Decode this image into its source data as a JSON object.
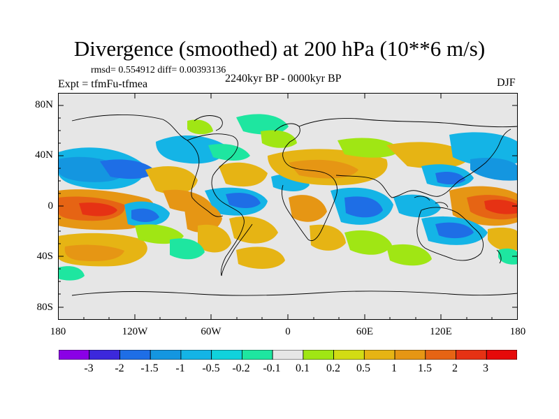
{
  "title": "Divergence (smoothed) at 200 hPa (10**6 m/s)",
  "stats": "rmsd= 0.554912 diff= 0.00393136",
  "experiment": "Expt = tfmFu-tfmea",
  "period": "2240kyr BP - 0000kyr BP",
  "season": "DJF",
  "axes": {
    "y_ticks": [
      "80N",
      "40N",
      "0",
      "40S",
      "80S"
    ],
    "x_ticks": [
      "180",
      "120W",
      "60W",
      "0",
      "60E",
      "120E",
      "180"
    ]
  },
  "colorbar": {
    "labels": [
      "-3",
      "-2",
      "-1.5",
      "-1",
      "-0.5",
      "-0.2",
      "-0.1",
      "0.1",
      "0.2",
      "0.5",
      "1",
      "1.5",
      "2",
      "3"
    ],
    "colors": [
      "#8a00e6",
      "#3c28dc",
      "#1e6ee6",
      "#1496e0",
      "#14b4e6",
      "#10d2dc",
      "#1ee6a0",
      "#e6e6e6",
      "#a0e614",
      "#d2dc14",
      "#e6b414",
      "#e69614",
      "#e66414",
      "#e63214",
      "#e60a0a"
    ]
  },
  "palette": {
    "neutral": "#e6e6e6",
    "coast": "#000000"
  }
}
